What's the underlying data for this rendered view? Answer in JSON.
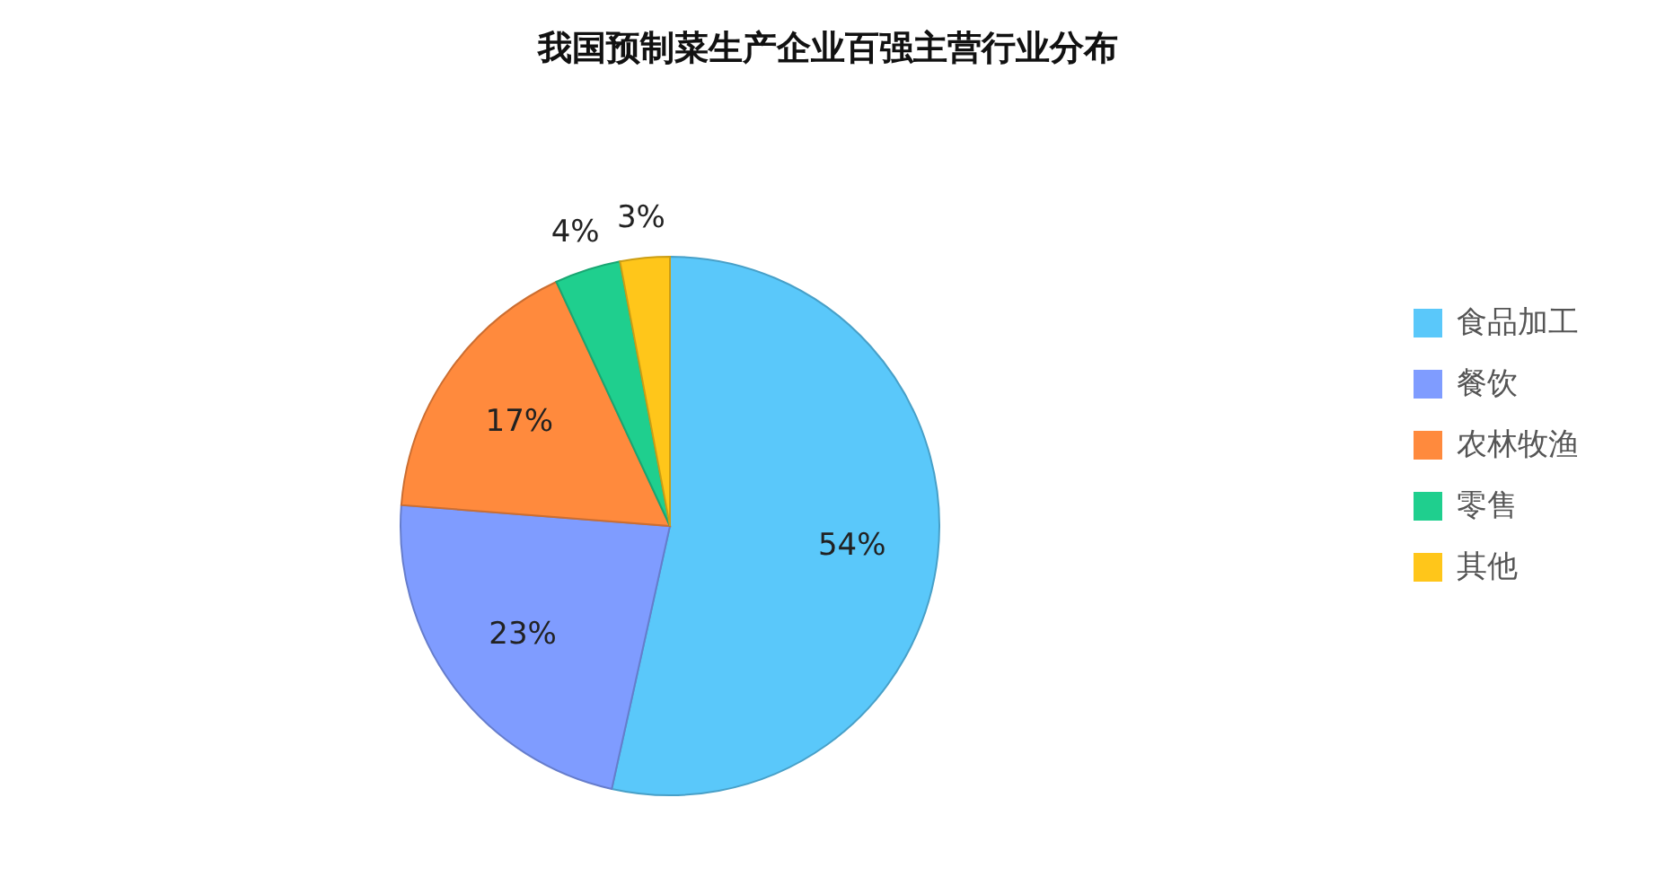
{
  "chart_data": {
    "type": "pie",
    "title": "我国预制菜生产企业百强主营行业分布",
    "categories": [
      "食品加工",
      "餐饮",
      "农林牧渔",
      "零售",
      "其他"
    ],
    "values": [
      54,
      23,
      17,
      4,
      3
    ],
    "value_labels": [
      "54%",
      "23%",
      "17%",
      "4%",
      "3%"
    ],
    "colors": [
      "#5ac8fa",
      "#7f9cff",
      "#ff8a3d",
      "#1fcf8e",
      "#ffc61a"
    ],
    "legend": "right"
  }
}
